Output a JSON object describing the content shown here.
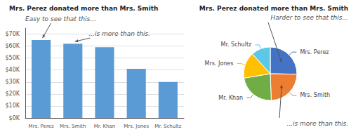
{
  "chart_data": [
    {
      "type": "bar",
      "title": "Mrs. Perez donated more than Mrs. Smith",
      "categories": [
        "Mrs. Perez",
        "Mrs. Smith",
        "Mr. Khan",
        "Mrs. Jones",
        "Mr. Schultz"
      ],
      "values": [
        65000,
        62000,
        59000,
        41000,
        30000
      ],
      "color": "#5b9bd5",
      "ylim": [
        0,
        75000
      ],
      "yticks": [
        {
          "value": 0,
          "label": "$0K"
        },
        {
          "value": 10000,
          "label": "$10K"
        },
        {
          "value": 20000,
          "label": "$20K"
        },
        {
          "value": 30000,
          "label": "$30K"
        },
        {
          "value": 40000,
          "label": "$40K"
        },
        {
          "value": 50000,
          "label": "$50K"
        },
        {
          "value": 60000,
          "label": "$60K"
        },
        {
          "value": 70000,
          "label": "$70K"
        }
      ],
      "grid": true,
      "annotations": [
        "Easy to see that this...",
        "...is more than this."
      ]
    },
    {
      "type": "pie",
      "title": "Mrs. Perez donated more than Mrs. Smith",
      "categories": [
        "Mrs. Perez",
        "Mrs. Smith",
        "Mr. Khan",
        "Mrs. Jones",
        "Mr. Schultz"
      ],
      "values": [
        65000,
        62000,
        59000,
        41000,
        30000
      ],
      "colors": [
        "#4472c4",
        "#ed7d31",
        "#70ad47",
        "#ffc000",
        "#5bc8e8"
      ],
      "annotations": [
        "Harder to see that this...",
        "...is more than this."
      ]
    }
  ]
}
